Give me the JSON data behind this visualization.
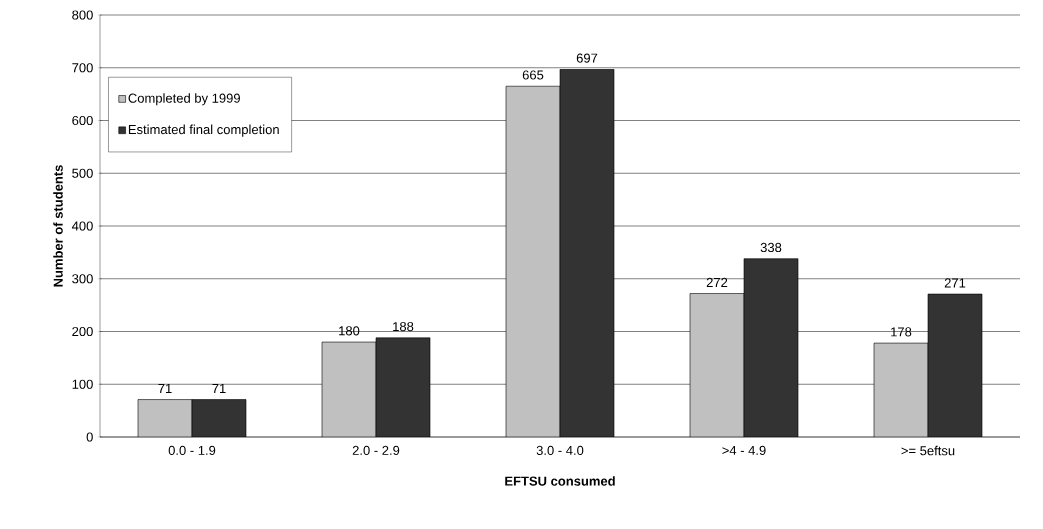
{
  "chart_data": {
    "type": "bar",
    "xlabel": "EFTSU consumed",
    "ylabel": "Number of students",
    "categories": [
      "0.0 - 1.9",
      "2.0 - 2.9",
      "3.0 - 4.0",
      ">4 - 4.9",
      ">= 5eftsu"
    ],
    "series": [
      {
        "name": "Completed by 1999",
        "color": "#c0c0c0",
        "values": [
          71,
          180,
          665,
          272,
          178
        ]
      },
      {
        "name": "Estimated final completion",
        "color": "#333333",
        "values": [
          71,
          188,
          697,
          338,
          271
        ]
      }
    ],
    "ylim": [
      0,
      800
    ],
    "yticks": [
      0,
      100,
      200,
      300,
      400,
      500,
      600,
      700,
      800
    ],
    "grid": "y",
    "legend": "top left",
    "data_labels": true
  }
}
